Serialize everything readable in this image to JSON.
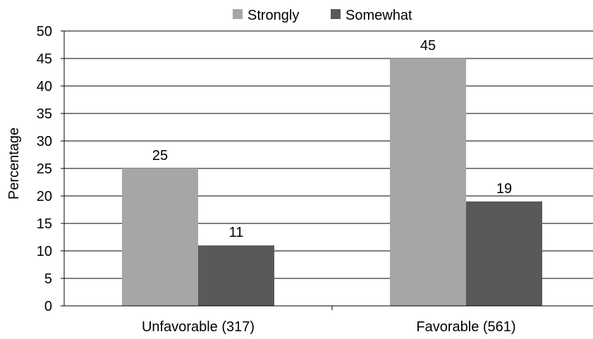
{
  "chart_data": {
    "type": "bar",
    "categories": [
      "Unfavorable (317)",
      "Favorable (561)"
    ],
    "series": [
      {
        "name": "Strongly",
        "values": [
          25,
          45
        ],
        "color": "#a6a6a6"
      },
      {
        "name": "Somewhat",
        "values": [
          11,
          19
        ],
        "color": "#595959"
      }
    ],
    "title": "",
    "xlabel": "",
    "ylabel": "Percentage",
    "ylim": [
      0,
      50
    ],
    "yticks": [
      0,
      5,
      10,
      15,
      20,
      25,
      30,
      35,
      40,
      45,
      50
    ],
    "grid": true,
    "legend_position": "top-center",
    "data_labels": true
  }
}
